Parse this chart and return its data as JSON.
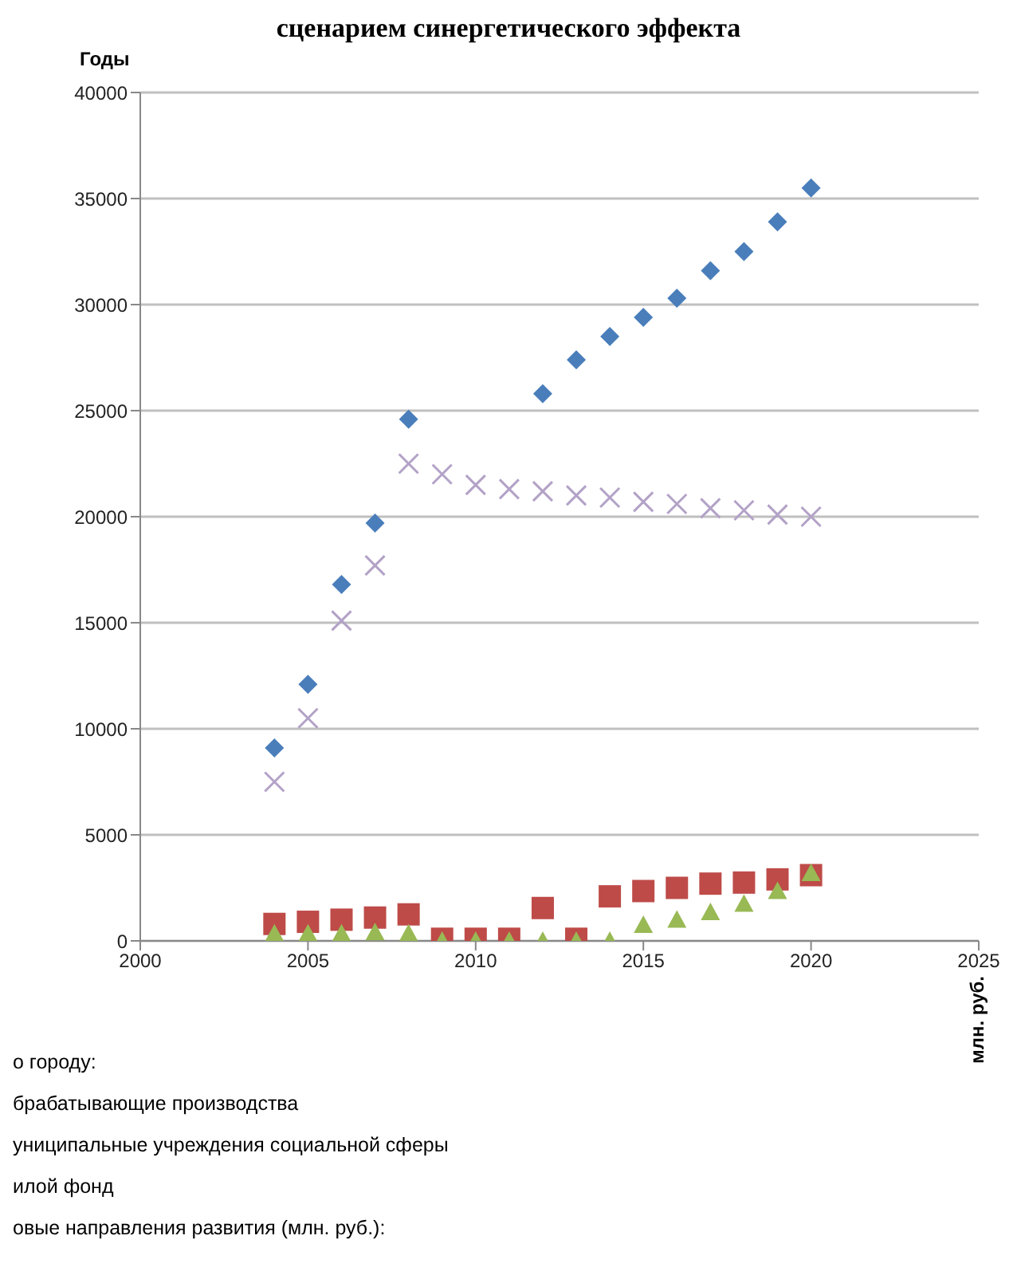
{
  "chart_data": {
    "type": "scatter",
    "title": "сценарием синергетического эффекта",
    "ylabel": "Годы",
    "y2label": "млн. руб.",
    "xlim": [
      2000,
      2025
    ],
    "xticks": [
      2000,
      2005,
      2010,
      2015,
      2020,
      2025
    ],
    "ylim": [
      0,
      40000
    ],
    "yticks": [
      0,
      5000,
      10000,
      15000,
      20000,
      25000,
      30000,
      35000,
      40000
    ],
    "grid": "y",
    "x": [
      2004,
      2005,
      2006,
      2007,
      2008,
      2009,
      2010,
      2011,
      2012,
      2013,
      2014,
      2015,
      2016,
      2017,
      2018,
      2019,
      2020
    ],
    "series": [
      {
        "color": "#4a7ebb",
        "marker": "diamond",
        "values": [
          9100,
          12100,
          16800,
          19700,
          24600,
          null,
          null,
          null,
          25800,
          27400,
          28500,
          29400,
          30300,
          31600,
          32500,
          33900,
          35500
        ]
      },
      {
        "color": "#be4b48",
        "marker": "square",
        "values": [
          800,
          900,
          1000,
          1100,
          1250,
          100,
          100,
          100,
          1550,
          100,
          2100,
          2350,
          2500,
          2700,
          2750,
          2900,
          3100
        ]
      },
      {
        "color": "#98b954",
        "marker": "triangle",
        "values": [
          350,
          350,
          350,
          400,
          350,
          0,
          0,
          0,
          0,
          0,
          0,
          750,
          1000,
          1350,
          1750,
          2350,
          3200
        ]
      },
      {
        "color": "#b3a2c7",
        "marker": "cross",
        "values": [
          7500,
          10500,
          15100,
          17700,
          22500,
          22000,
          21500,
          21300,
          21200,
          21000,
          20900,
          20700,
          20600,
          20400,
          20300,
          20100,
          20000
        ]
      }
    ],
    "annotations": [
      "о городу:",
      "брабатывающие производства",
      "униципальные учреждения социальной сферы",
      "илой фонд",
      "овые направления развития (млн. руб.):"
    ]
  }
}
